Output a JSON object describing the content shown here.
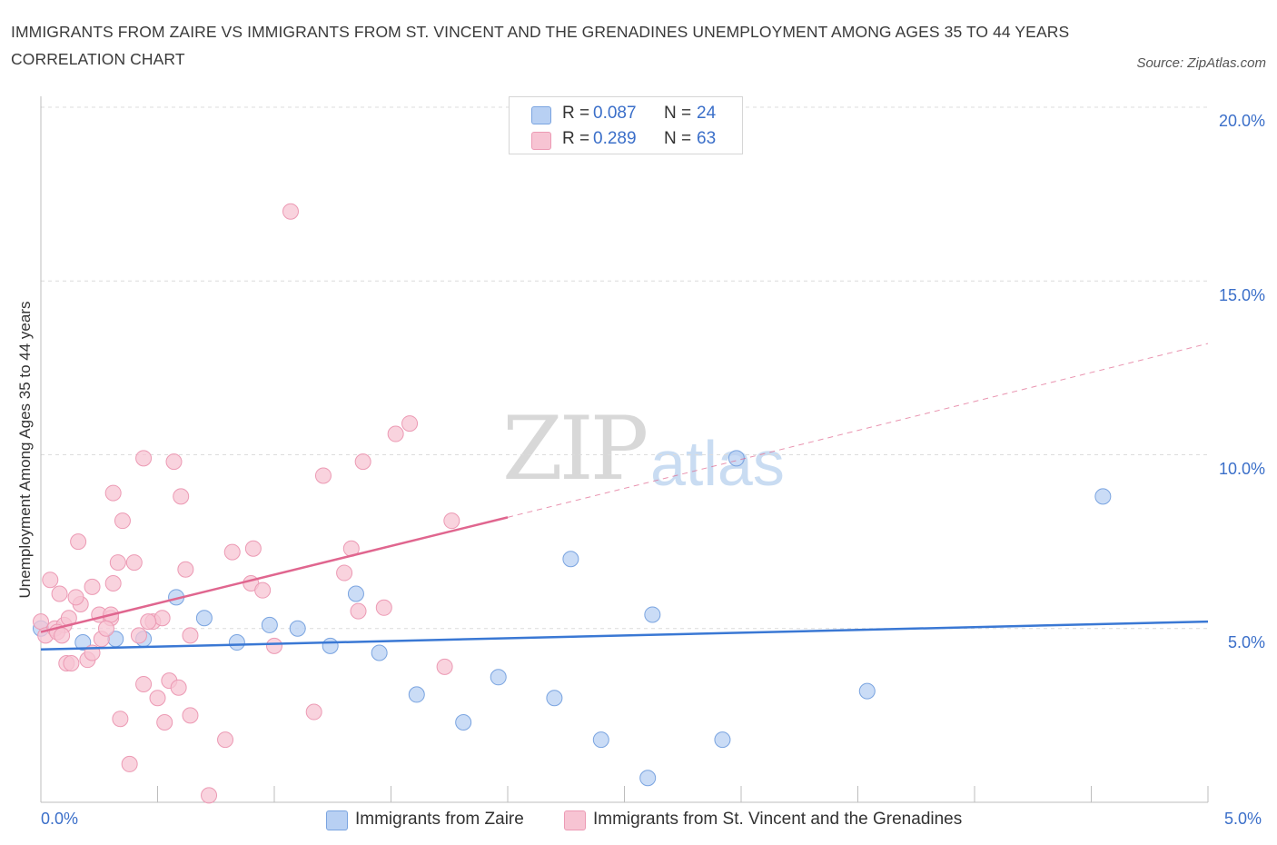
{
  "title": "IMMIGRANTS FROM ZAIRE VS IMMIGRANTS FROM ST. VINCENT AND THE GRENADINES UNEMPLOYMENT AMONG AGES 35 TO 44 YEARS CORRELATION CHART",
  "source": "Source: ZipAtlas.com",
  "watermark": {
    "zip": "ZIP",
    "atlas": "atlas"
  },
  "legend_top": {
    "rows": [
      {
        "r_label": "R =",
        "r_value": "0.087",
        "n_label": "N =",
        "n_value": "24"
      },
      {
        "r_label": "R =",
        "r_value": "0.289",
        "n_label": "N =",
        "n_value": "63"
      }
    ]
  },
  "colors": {
    "blue_fill": "#b8d0f3",
    "blue_stroke": "#7aa4e0",
    "blue_line": "#3a78d4",
    "pink_fill": "#f7c4d3",
    "pink_stroke": "#ec9ab4",
    "pink_line": "#e0668f",
    "accent_text": "#3b6fc9",
    "grid": "#dcdcdc"
  },
  "chart_data": {
    "type": "scatter",
    "title": "IMMIGRANTS FROM ZAIRE VS IMMIGRANTS FROM ST. VINCENT AND THE GRENADINES UNEMPLOYMENT AMONG AGES 35 TO 44 YEARS CORRELATION CHART",
    "xlabel": "",
    "ylabel": "Unemployment Among Ages 35 to 44 years",
    "xlim": [
      0,
      5
    ],
    "ylim": [
      0,
      20
    ],
    "x_tick_labels": [
      "0.0%",
      "5.0%"
    ],
    "y_tick_labels": [
      "5.0%",
      "10.0%",
      "15.0%",
      "20.0%"
    ],
    "y_ticks": [
      5,
      10,
      15,
      20
    ],
    "grid": true,
    "legend_position": "bottom",
    "series": [
      {
        "name": "Immigrants from Zaire",
        "color": "#b8d0f3",
        "trend": {
          "x": [
            0,
            5
          ],
          "y": [
            4.4,
            5.2
          ],
          "style": "solid"
        },
        "points": [
          [
            0.0,
            5.0
          ],
          [
            0.18,
            4.6
          ],
          [
            0.32,
            4.7
          ],
          [
            0.44,
            4.7
          ],
          [
            0.58,
            5.9
          ],
          [
            0.7,
            5.3
          ],
          [
            0.84,
            4.6
          ],
          [
            0.98,
            5.1
          ],
          [
            1.1,
            5.0
          ],
          [
            1.24,
            4.5
          ],
          [
            1.35,
            6.0
          ],
          [
            1.45,
            4.3
          ],
          [
            1.61,
            3.1
          ],
          [
            1.81,
            2.3
          ],
          [
            1.96,
            3.6
          ],
          [
            2.2,
            3.0
          ],
          [
            2.27,
            7.0
          ],
          [
            2.4,
            1.8
          ],
          [
            2.6,
            0.7
          ],
          [
            2.62,
            5.4
          ],
          [
            2.92,
            1.8
          ],
          [
            2.98,
            9.9
          ],
          [
            3.54,
            3.2
          ],
          [
            4.55,
            8.8
          ]
        ]
      },
      {
        "name": "Immigrants from St. Vincent and the Grenadines",
        "color": "#f7c4d3",
        "trend": {
          "x": [
            0,
            2.0
          ],
          "y": [
            4.9,
            8.2
          ],
          "style": "solid",
          "extended": {
            "x": [
              2.0,
              5
            ],
            "y": [
              8.2,
              13.2
            ],
            "style": "dashed"
          }
        },
        "points": [
          [
            0.0,
            5.2
          ],
          [
            0.02,
            4.8
          ],
          [
            0.04,
            6.4
          ],
          [
            0.06,
            5.0
          ],
          [
            0.08,
            6.0
          ],
          [
            0.1,
            5.1
          ],
          [
            0.11,
            4.0
          ],
          [
            0.12,
            5.3
          ],
          [
            0.13,
            4.0
          ],
          [
            0.16,
            7.5
          ],
          [
            0.17,
            5.7
          ],
          [
            0.2,
            4.1
          ],
          [
            0.22,
            6.2
          ],
          [
            0.22,
            4.3
          ],
          [
            0.25,
            5.4
          ],
          [
            0.26,
            4.7
          ],
          [
            0.3,
            5.3
          ],
          [
            0.3,
            5.4
          ],
          [
            0.31,
            6.3
          ],
          [
            0.31,
            8.9
          ],
          [
            0.33,
            6.9
          ],
          [
            0.34,
            2.4
          ],
          [
            0.35,
            8.1
          ],
          [
            0.38,
            1.1
          ],
          [
            0.4,
            6.9
          ],
          [
            0.42,
            4.8
          ],
          [
            0.44,
            3.4
          ],
          [
            0.44,
            9.9
          ],
          [
            0.48,
            5.2
          ],
          [
            0.5,
            3.0
          ],
          [
            0.52,
            5.3
          ],
          [
            0.53,
            2.3
          ],
          [
            0.55,
            3.5
          ],
          [
            0.57,
            9.8
          ],
          [
            0.59,
            3.3
          ],
          [
            0.6,
            8.8
          ],
          [
            0.62,
            6.7
          ],
          [
            0.64,
            2.5
          ],
          [
            0.64,
            4.8
          ],
          [
            0.72,
            0.2
          ],
          [
            0.79,
            1.8
          ],
          [
            0.82,
            7.2
          ],
          [
            0.9,
            6.3
          ],
          [
            0.91,
            7.3
          ],
          [
            0.95,
            6.1
          ],
          [
            1.0,
            4.5
          ],
          [
            1.17,
            2.6
          ],
          [
            1.21,
            9.4
          ],
          [
            1.3,
            6.6
          ],
          [
            1.33,
            7.3
          ],
          [
            1.36,
            5.5
          ],
          [
            1.38,
            9.8
          ],
          [
            1.47,
            5.6
          ],
          [
            1.52,
            10.6
          ],
          [
            1.58,
            10.9
          ],
          [
            1.73,
            3.9
          ],
          [
            1.76,
            8.1
          ],
          [
            0.07,
            4.9
          ],
          [
            0.46,
            5.2
          ],
          [
            0.09,
            4.8
          ],
          [
            0.28,
            5.0
          ],
          [
            0.15,
            5.9
          ],
          [
            1.07,
            17.0
          ]
        ]
      }
    ]
  },
  "legend_bottom": [
    {
      "label": "Immigrants from Zaire"
    },
    {
      "label": "Immigrants from St. Vincent and the Grenadines"
    }
  ]
}
